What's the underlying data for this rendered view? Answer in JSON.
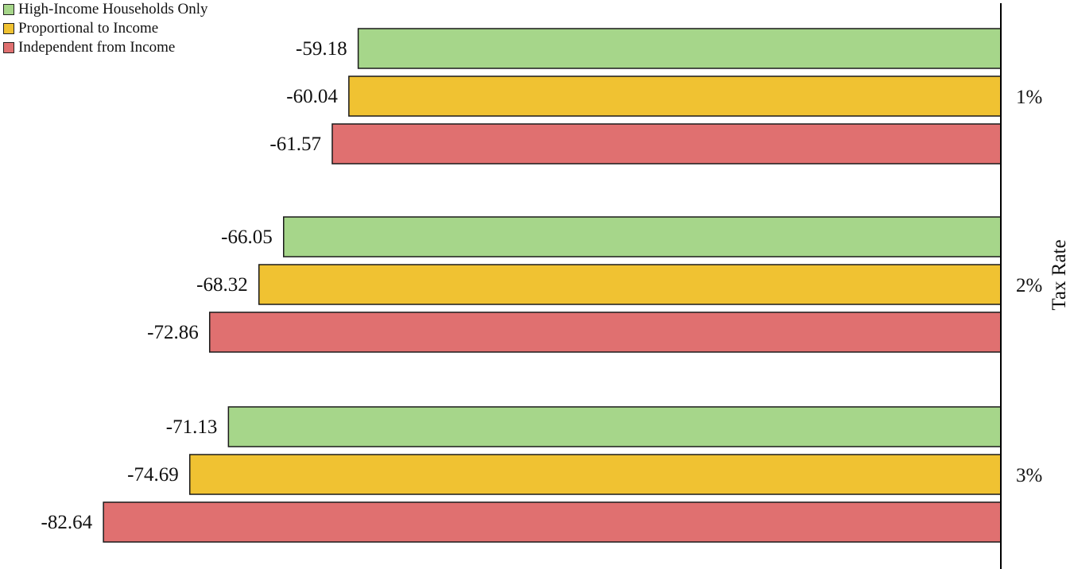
{
  "chart_data": {
    "type": "bar",
    "orientation": "horizontal",
    "categories": [
      "1%",
      "2%",
      "3%"
    ],
    "ylabel": "Tax Rate",
    "xlabel": "",
    "title": "",
    "legend_position": "top-left",
    "grid": false,
    "series": [
      {
        "name": "High-Income Households Only",
        "color": "#a6d68a",
        "values": [
          -59.18,
          -66.05,
          -71.13
        ]
      },
      {
        "name": "Proportional to Income",
        "color": "#f0c232",
        "values": [
          -60.04,
          -68.32,
          -74.69
        ]
      },
      {
        "name": "Independent from Income",
        "color": "#e07070",
        "values": [
          -61.57,
          -72.86,
          -82.64
        ]
      }
    ],
    "data_labels": [
      [
        "-59.18",
        "-60.04",
        "-61.57"
      ],
      [
        "-66.05",
        "-68.32",
        "-72.86"
      ],
      [
        "-71.13",
        "-74.69",
        "-82.64"
      ]
    ]
  }
}
